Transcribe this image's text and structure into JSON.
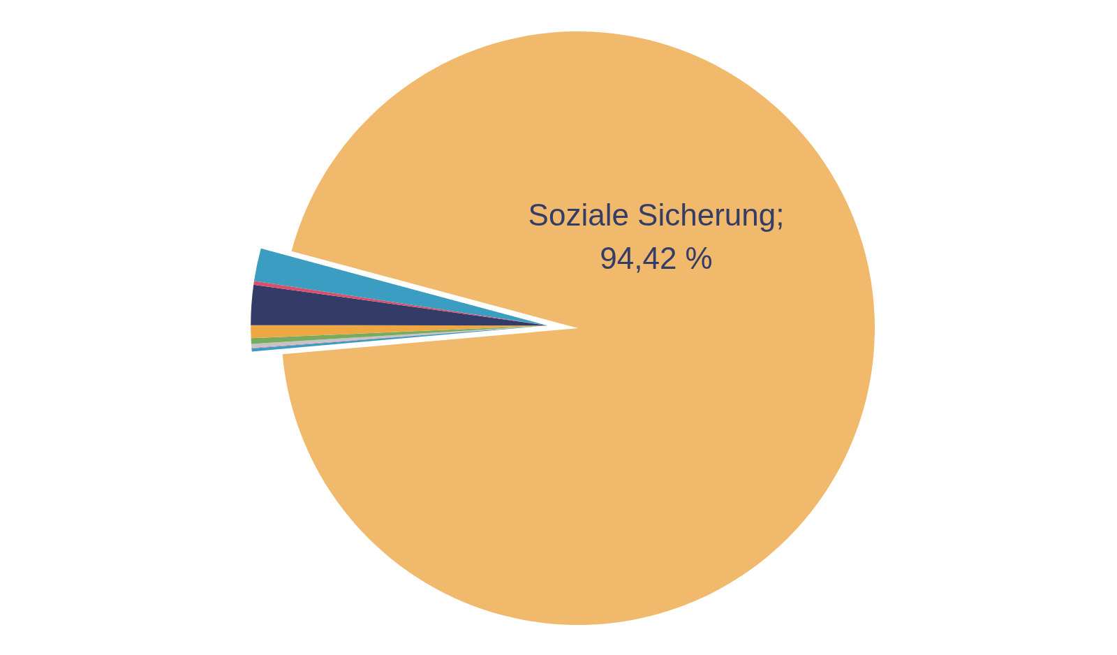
{
  "chart_data": {
    "type": "pie",
    "categories": [
      "Soziale Sicherung",
      null,
      null,
      null,
      null,
      null,
      null,
      null,
      null
    ],
    "values": [
      94.42,
      0.17,
      0.04,
      0.2,
      0.31,
      0.7,
      2.18,
      0.2,
      1.78
    ],
    "colors": [
      "#f1b96b",
      "#3a9dc1",
      "#d9849a",
      "#c4c4c4",
      "#78ab60",
      "#eea843",
      "#323c66",
      "#d9506b",
      "#3a9dc1"
    ],
    "value_labels": [
      ";\n94,42 %",
      null,
      null,
      null,
      null,
      null,
      null,
      null,
      null
    ]
  }
}
